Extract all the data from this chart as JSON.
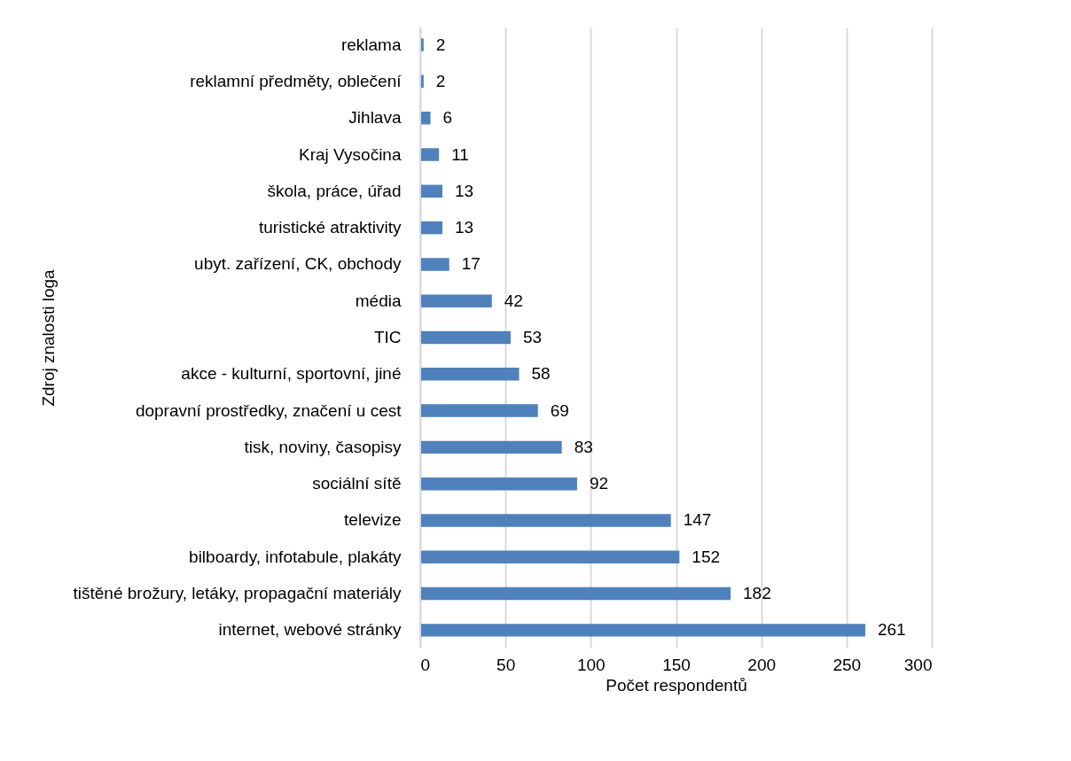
{
  "chart_data": {
    "type": "bar",
    "orientation": "horizontal",
    "xlabel": "Počet respondentů",
    "ylabel": "Zdroj znalosti loga",
    "categories": [
      "reklama",
      "reklamní předměty, oblečení",
      "Jihlava",
      "Kraj Vysočina",
      "škola, práce, úřad",
      "turistické atraktivity",
      "ubyt. zařízení, CK, obchody",
      "média",
      "TIC",
      "akce - kulturní, sportovní, jiné",
      "dopravní prostředky, značení u cest",
      "tisk, noviny, časopisy",
      "sociální sítě",
      "televize",
      "bilboardy, infotabule, plakáty",
      "tištěné brožury, letáky, propagační materiály",
      "internet, webové stránky"
    ],
    "values": [
      2,
      2,
      6,
      11,
      13,
      13,
      17,
      42,
      53,
      58,
      69,
      83,
      92,
      147,
      152,
      182,
      261
    ],
    "color": "#4f81bd",
    "xlim": [
      0,
      300
    ],
    "xticks": [
      0,
      50,
      100,
      150,
      200,
      250,
      300
    ],
    "grid": "x",
    "data_labels": true
  }
}
